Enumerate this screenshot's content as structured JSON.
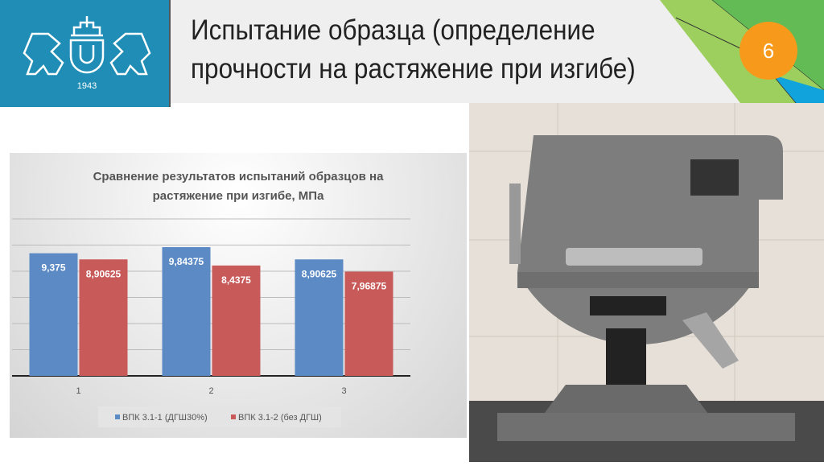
{
  "header": {
    "title_line1": "Испытание образца (определение",
    "title_line2": "прочности на растяжение при изгибе)",
    "page_number": "6",
    "logo_year": "1943",
    "colors": {
      "logo_bg": "#1f8db5",
      "badge": "#f79a1c",
      "green_dark": "#62bb55",
      "green_light": "#9ccf5d",
      "blue": "#10a3dc"
    }
  },
  "chart_data": {
    "type": "bar",
    "title_line1": "Сравнение результатов испытаний образцов на",
    "title_line2": "растяжение при изгибе, МПа",
    "categories": [
      "1",
      "2",
      "3"
    ],
    "series": [
      {
        "name": "ВПК 3.1-1 (ДГШ30%)",
        "values": [
          9.375,
          9.84375,
          8.90625
        ],
        "labels": [
          "9,375",
          "9,84375",
          "8,90625"
        ],
        "color": "#5b8ac5"
      },
      {
        "name": "ВПК 3.1-2 (без ДГШ)",
        "values": [
          8.90625,
          8.4375,
          7.96875
        ],
        "labels": [
          "8,90625",
          "8,4375",
          "7,96875"
        ],
        "color": "#c85a5a"
      }
    ],
    "ylim": [
      0,
      12
    ],
    "y_gridline_step": 2,
    "y_tick_labels_shown": false,
    "grid": true,
    "legend": "bottom"
  },
  "photo": {
    "description_icon": "testing-machine-photo"
  }
}
